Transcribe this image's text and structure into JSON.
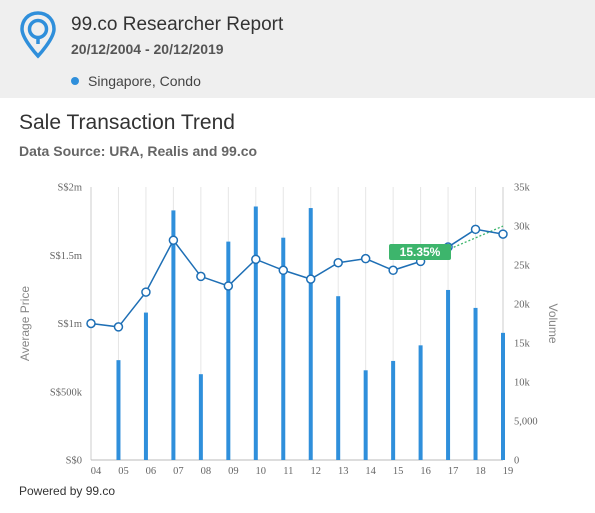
{
  "header": {
    "title": "99.co Researcher Report",
    "date_range": "20/12/2004 - 20/12/2019",
    "location": "Singapore, Condo",
    "location_dot_color": "#2f8fdb"
  },
  "section": {
    "title": "Sale Transaction Trend",
    "source": "Data Source: URA, Realis and 99.co"
  },
  "footer": {
    "powered": "Powered by 99.co"
  },
  "chart_data": {
    "type": "bar+line",
    "categories": [
      "04",
      "05",
      "06",
      "07",
      "08",
      "09",
      "10",
      "11",
      "12",
      "13",
      "14",
      "15",
      "16",
      "17",
      "18",
      "19"
    ],
    "bar_series": {
      "values": [
        0,
        12800,
        18900,
        32000,
        11000,
        28000,
        32500,
        28500,
        32300,
        21000,
        11500,
        12700,
        14700,
        21800,
        19500,
        16300
      ],
      "color": "#2f8fdb"
    },
    "line_series": {
      "values": [
        1000000,
        975000,
        1230000,
        1610000,
        1345000,
        1275000,
        1470000,
        1390000,
        1325000,
        1445000,
        1475000,
        1390000,
        1455000,
        1560000,
        1690000,
        1655000
      ],
      "color": "#1e6fb5"
    },
    "left_axis": {
      "label": "Average Price",
      "ticks": [
        0,
        500000,
        1000000,
        1500000,
        2000000
      ],
      "tick_labels": [
        "S$0",
        "S$500k",
        "S$1m",
        "S$1.5m",
        "S$2m"
      ],
      "range": [
        0,
        2000000
      ]
    },
    "right_axis": {
      "label": "Volume",
      "ticks": [
        0,
        5000,
        10000,
        15000,
        20000,
        25000,
        30000,
        35000
      ],
      "tick_labels": [
        "0",
        "5,000",
        "10k",
        "15k",
        "20k",
        "25k",
        "30k",
        "35k"
      ],
      "range": [
        0,
        35000
      ]
    },
    "trend": {
      "from_index": 12,
      "to_index": 15,
      "label": "15.35%",
      "color": "#3db56c"
    },
    "grid": "vertical"
  }
}
